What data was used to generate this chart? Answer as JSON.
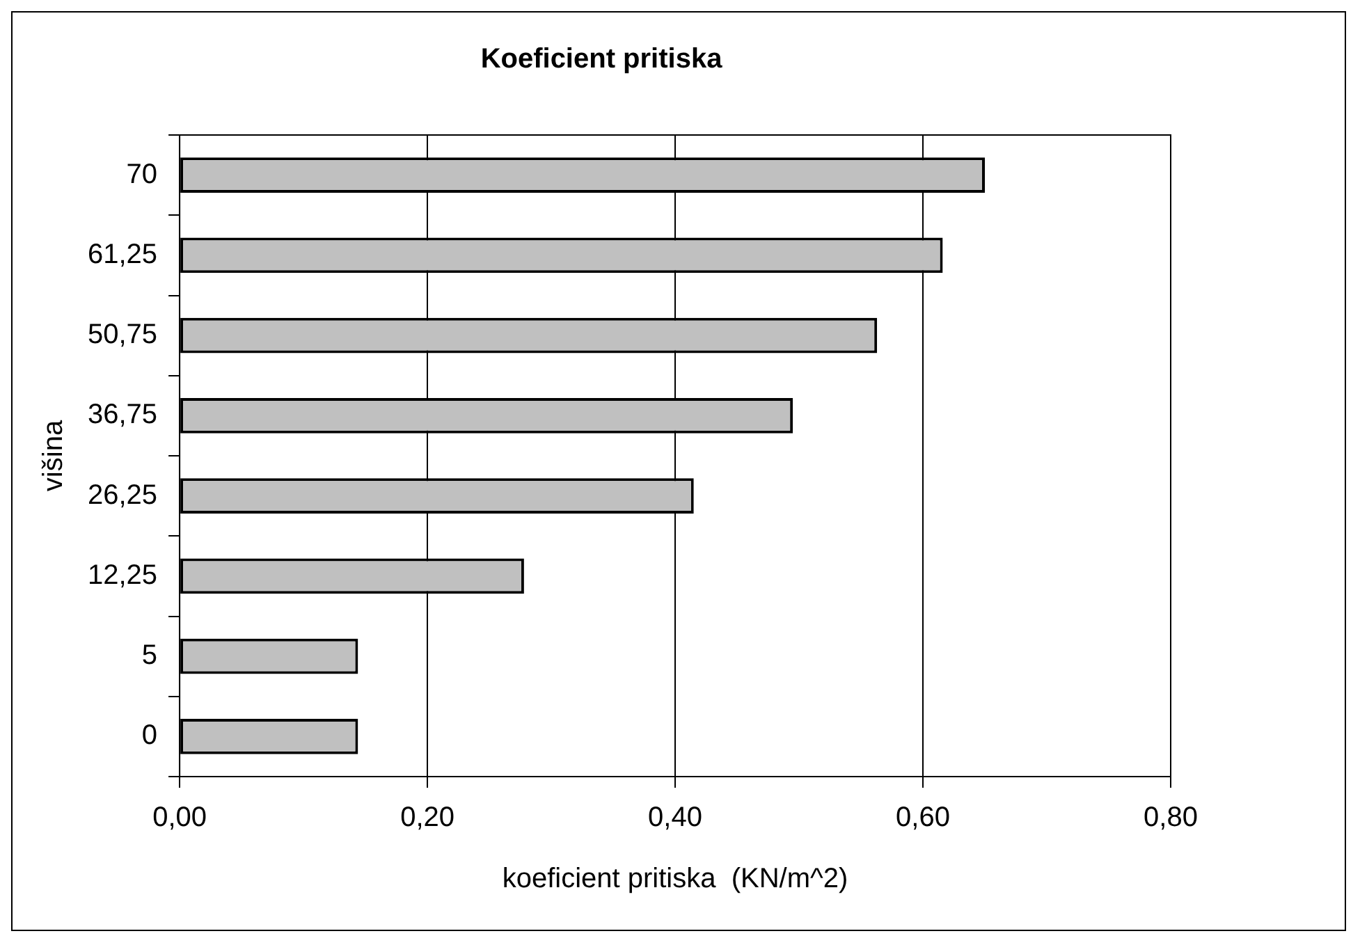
{
  "chart_data": {
    "type": "bar",
    "orientation": "horizontal",
    "title": "Koeficient pritiska",
    "xlabel": "koeficient pritiska  (KN/m^2)",
    "ylabel": "višina",
    "categories": [
      "70",
      "61,25",
      "50,75",
      "36,75",
      "26,25",
      "12,25",
      "5",
      "0"
    ],
    "values": [
      0.65,
      0.616,
      0.563,
      0.495,
      0.415,
      0.278,
      0.144,
      0.144
    ],
    "color": "#c0c0c0",
    "xlim": [
      0,
      0.8
    ],
    "xticks": [
      {
        "value": 0,
        "label": "0,00"
      },
      {
        "value": 0.2,
        "label": "0,20"
      },
      {
        "value": 0.4,
        "label": "0,40"
      },
      {
        "value": 0.6,
        "label": "0,60"
      },
      {
        "value": 0.8,
        "label": "0,80"
      }
    ],
    "grid": "x",
    "legend": false
  }
}
